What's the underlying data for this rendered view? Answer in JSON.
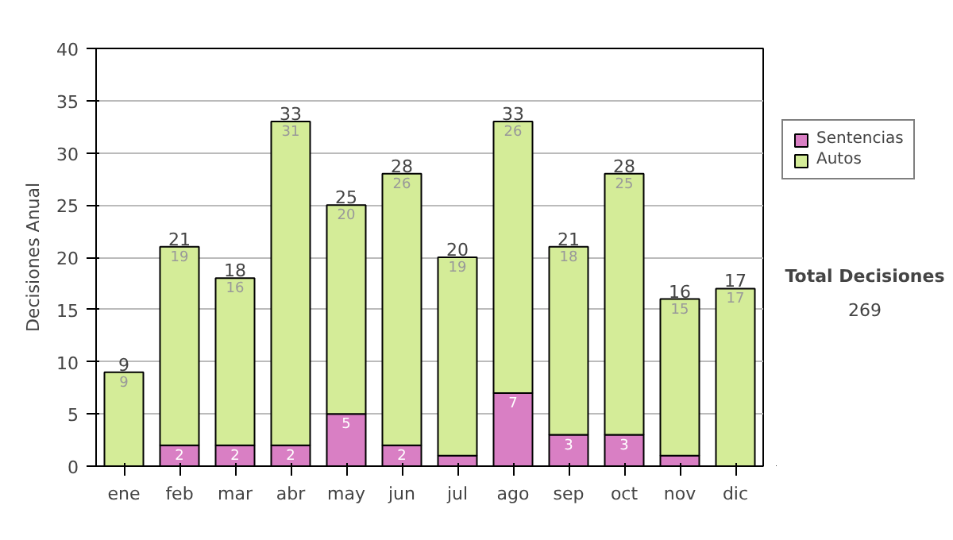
{
  "chart_data": {
    "type": "bar",
    "stacked": true,
    "ylabel": "Decisiones Anual",
    "categories": [
      "ene",
      "feb",
      "mar",
      "abr",
      "may",
      "jun",
      "jul",
      "ago",
      "sep",
      "oct",
      "nov",
      "dic"
    ],
    "series": [
      {
        "name": "Sentencias",
        "color": "#d97fc4",
        "values": [
          0,
          2,
          2,
          2,
          5,
          2,
          1,
          7,
          3,
          3,
          1,
          0
        ],
        "value_labels": [
          null,
          "2",
          "2",
          "2",
          "5",
          "2",
          null,
          "7",
          "3",
          "3",
          null,
          null
        ]
      },
      {
        "name": "Autos",
        "color": "#d4ec98",
        "values": [
          9,
          19,
          16,
          31,
          20,
          26,
          19,
          26,
          18,
          25,
          15,
          17
        ],
        "value_labels": [
          "9",
          "19",
          "16",
          "31",
          "20",
          "26",
          "19",
          "26",
          "18",
          "25",
          "15",
          "17"
        ]
      }
    ],
    "totals": [
      "9",
      "21",
      "18",
      "33",
      "25",
      "28",
      "20",
      "33",
      "21",
      "28",
      "16",
      "17"
    ],
    "ylim": [
      0,
      40
    ],
    "yticks": [
      0,
      5,
      10,
      15,
      20,
      25,
      30,
      35,
      40
    ],
    "grid": "y",
    "legend": "right",
    "annotations": [
      "Total Decisiones",
      "269"
    ]
  }
}
